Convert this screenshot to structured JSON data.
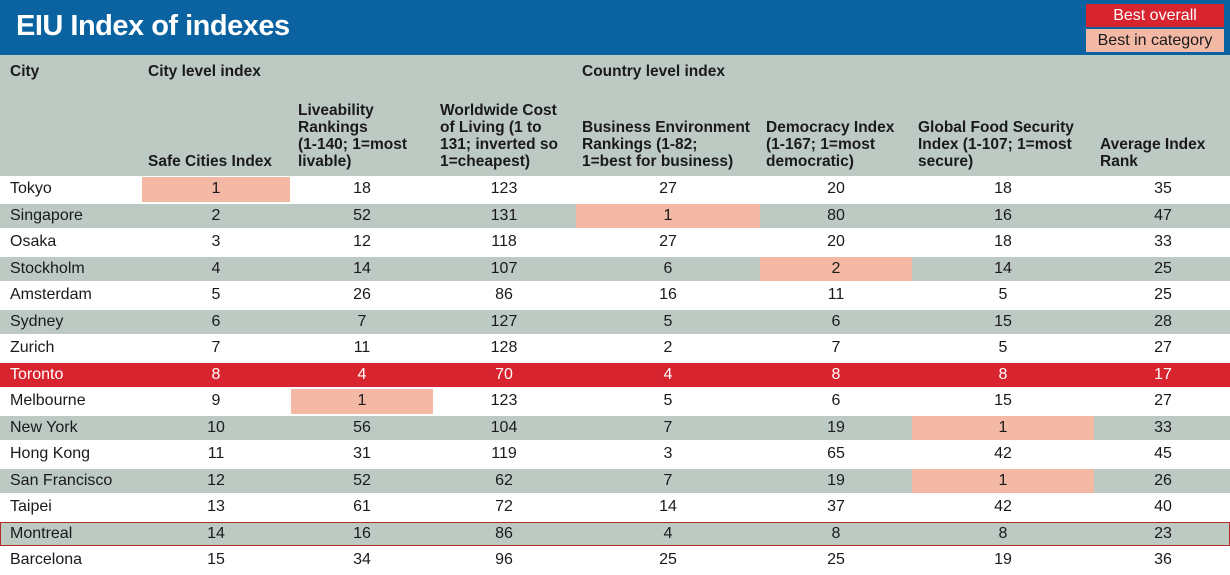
{
  "title": "EIU Index of indexes",
  "legend": {
    "best_overall": "Best overall",
    "best_in_category": "Best in category"
  },
  "colors": {
    "header_blue": "#0a62a0",
    "best_overall_red": "#d8242f",
    "best_in_category_pink": "#f3b9a5",
    "row_band_gray": "#bccac3"
  },
  "headers": {
    "city": "City",
    "city_level": "City level index",
    "country_level": "Country level index",
    "safe": "Safe Cities Index",
    "liveability": [
      "Liveability",
      "Rankings",
      "(1-140; 1=most",
      "livable)"
    ],
    "cost": [
      "Worldwide Cost",
      "of Living (1 to",
      "131; inverted so",
      "1=cheapest)"
    ],
    "business": [
      "Business Environment",
      "Rankings (1-82;",
      "1=best for business)"
    ],
    "democracy": [
      "Democracy Index",
      "(1-167; 1=most",
      "democratic)"
    ],
    "food": [
      "Global Food Security",
      "Index (1-107; 1=most",
      "secure)"
    ],
    "average": [
      "Average Index",
      "Rank"
    ]
  },
  "rows": [
    {
      "city": "Tokyo",
      "values": [
        "1",
        "18",
        "123",
        "27",
        "20",
        "18",
        "35"
      ],
      "highlight": [
        0
      ],
      "best_overall": false
    },
    {
      "city": "Singapore",
      "values": [
        "2",
        "52",
        "131",
        "1",
        "80",
        "16",
        "47"
      ],
      "highlight": [
        3
      ],
      "best_overall": false
    },
    {
      "city": "Osaka",
      "values": [
        "3",
        "12",
        "118",
        "27",
        "20",
        "18",
        "33"
      ],
      "highlight": [],
      "best_overall": false
    },
    {
      "city": "Stockholm",
      "values": [
        "4",
        "14",
        "107",
        "6",
        "2",
        "14",
        "25"
      ],
      "highlight": [
        4
      ],
      "best_overall": false
    },
    {
      "city": "Amsterdam",
      "values": [
        "5",
        "26",
        "86",
        "16",
        "11",
        "5",
        "25"
      ],
      "highlight": [],
      "best_overall": false
    },
    {
      "city": "Sydney",
      "values": [
        "6",
        "7",
        "127",
        "5",
        "6",
        "15",
        "28"
      ],
      "highlight": [],
      "best_overall": false
    },
    {
      "city": "Zurich",
      "values": [
        "7",
        "11",
        "128",
        "2",
        "7",
        "5",
        "27"
      ],
      "highlight": [],
      "best_overall": false
    },
    {
      "city": "Toronto",
      "values": [
        "8",
        "4",
        "70",
        "4",
        "8",
        "8",
        "17"
      ],
      "highlight": [],
      "best_overall": true
    },
    {
      "city": "Melbourne",
      "values": [
        "9",
        "1",
        "123",
        "5",
        "6",
        "15",
        "27"
      ],
      "highlight": [
        1
      ],
      "best_overall": false
    },
    {
      "city": "New York",
      "values": [
        "10",
        "56",
        "104",
        "7",
        "19",
        "1",
        "33"
      ],
      "highlight": [
        5
      ],
      "best_overall": false
    },
    {
      "city": "Hong Kong",
      "values": [
        "11",
        "31",
        "119",
        "3",
        "65",
        "42",
        "45"
      ],
      "highlight": [],
      "best_overall": false
    },
    {
      "city": "San Francisco",
      "values": [
        "12",
        "52",
        "62",
        "7",
        "19",
        "1",
        "26"
      ],
      "highlight": [
        5
      ],
      "best_overall": false
    },
    {
      "city": "Taipei",
      "values": [
        "13",
        "61",
        "72",
        "14",
        "37",
        "42",
        "40"
      ],
      "highlight": [],
      "best_overall": false
    },
    {
      "city": "Montreal",
      "values": [
        "14",
        "16",
        "86",
        "4",
        "8",
        "8",
        "23"
      ],
      "highlight": [],
      "best_overall": false,
      "outlined": true
    },
    {
      "city": "Barcelona",
      "values": [
        "15",
        "34",
        "96",
        "25",
        "25",
        "19",
        "36"
      ],
      "highlight": [],
      "best_overall": false
    }
  ]
}
